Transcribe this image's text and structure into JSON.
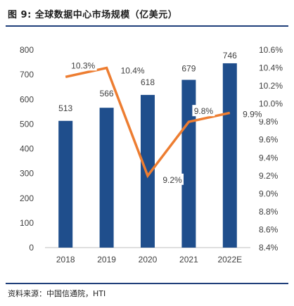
{
  "figure": {
    "title": "图 9:  全球数据中心市场规模（亿美元）",
    "source": "资料来源：中国信通院，HTI"
  },
  "chart_data": {
    "type": "bar",
    "categories": [
      "2018",
      "2019",
      "2020",
      "2021",
      "2022E"
    ],
    "series": [
      {
        "values": [
          513,
          566,
          618,
          679,
          746
        ],
        "axis": "left",
        "render": "bar",
        "color": "#1f4e8c"
      },
      {
        "values": [
          10.3,
          10.4,
          9.2,
          9.8,
          9.9
        ],
        "axis": "right",
        "render": "line",
        "color": "#ed7d31"
      }
    ],
    "bar_labels": [
      "513",
      "566",
      "618",
      "679",
      "746"
    ],
    "line_labels": [
      "10.3%",
      "10.4%",
      "9.2%",
      "9.8%",
      "9.9%"
    ],
    "y_left": {
      "lim": [
        0,
        800
      ],
      "ticks": [
        "0",
        "100",
        "200",
        "300",
        "400",
        "500",
        "600",
        "700",
        "800"
      ]
    },
    "y_right": {
      "lim": [
        8.4,
        10.6
      ],
      "ticks": [
        "8.4%",
        "8.6%",
        "8.8%",
        "9.0%",
        "9.2%",
        "9.4%",
        "9.6%",
        "9.8%",
        "10.0%",
        "10.2%",
        "10.4%",
        "10.6%"
      ]
    },
    "grid": false,
    "legend": "none",
    "title": "",
    "xlabel": "",
    "ylabel": ""
  }
}
